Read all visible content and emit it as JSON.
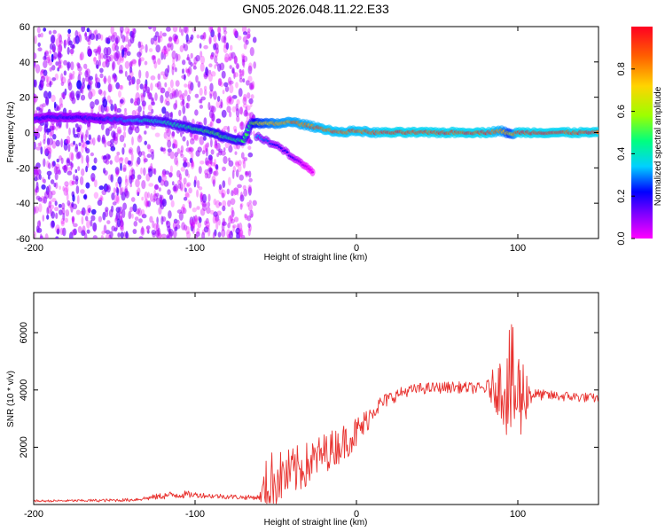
{
  "figure": {
    "title": "GN05.2026.048.11.22.E33"
  },
  "colors": {
    "signal": "#e8322f",
    "rainbow": [
      "#ff00ff",
      "#7a00ff",
      "#0000ff",
      "#00d0ff",
      "#00ff7f",
      "#9cff00",
      "#ffd400",
      "#ff6000",
      "#ff0022"
    ]
  },
  "chart_data": [
    {
      "type": "heatmap",
      "title": "GN05.2026.048.11.22.E33",
      "xlabel": "Height of straight line (km)",
      "ylabel": "Frequency (Hz)",
      "xlim": [
        -200,
        150
      ],
      "ylim": [
        -60,
        60
      ],
      "x_ticks": [
        -200,
        -100,
        0,
        100
      ],
      "y_ticks": [
        -60,
        -40,
        -20,
        0,
        20,
        40,
        60
      ],
      "noise_region_x": [
        -200,
        -63
      ],
      "signal_track": {
        "x": [
          -200,
          -180,
          -160,
          -140,
          -130,
          -120,
          -110,
          -100,
          -90,
          -80,
          -70,
          -65,
          -60,
          -50,
          -40,
          -30,
          -20,
          -10,
          0,
          10,
          20,
          40,
          60,
          80,
          90,
          95,
          100,
          120,
          150
        ],
        "y": [
          8,
          9,
          8,
          7,
          7,
          6,
          4,
          2,
          0,
          -3,
          -5,
          6,
          5,
          5,
          6,
          4,
          2,
          0,
          1,
          0,
          0,
          0,
          0,
          0,
          1,
          -1,
          0,
          0,
          0
        ],
        "amplitude": [
          0.25,
          0.25,
          0.25,
          0.35,
          0.45,
          0.45,
          0.45,
          0.5,
          0.55,
          0.5,
          0.5,
          0.55,
          0.7,
          0.85,
          0.9,
          0.9,
          0.95,
          0.95,
          0.95,
          0.95,
          1.0,
          1.0,
          1.0,
          1.0,
          0.9,
          0.7,
          1.0,
          1.0,
          1.0
        ]
      },
      "secondary_track": {
        "x": [
          -62,
          -55,
          -50,
          -45,
          -40,
          -35,
          -30,
          -27
        ],
        "y": [
          -2,
          -5,
          -7,
          -10,
          -14,
          -17,
          -20,
          -23
        ],
        "amplitude": [
          0.35,
          0.3,
          0.25,
          0.22,
          0.2,
          0.12,
          0.05,
          0.03
        ]
      },
      "colorbar": {
        "label": "Normalized spectral amplitude",
        "range": [
          0,
          1
        ],
        "ticks": [
          "0.0",
          "0.2",
          "0.4",
          "0.6",
          "0.8"
        ]
      }
    },
    {
      "type": "line",
      "xlabel": "Height of straight line (km)",
      "ylabel": "SNR (10 * v/v)",
      "xlim": [
        -200,
        150
      ],
      "ylim": [
        0,
        7400
      ],
      "x_ticks": [
        -200,
        -100,
        0,
        100
      ],
      "y_ticks": [
        2000,
        4000,
        6000
      ],
      "series": [
        {
          "name": "SNR",
          "x": [
            -200,
            -180,
            -160,
            -140,
            -130,
            -120,
            -110,
            -100,
            -90,
            -80,
            -70,
            -60,
            -55,
            -50,
            -45,
            -40,
            -30,
            -20,
            -10,
            0,
            5,
            10,
            20,
            30,
            40,
            60,
            80,
            90,
            95,
            100,
            105,
            110,
            120,
            140,
            150
          ],
          "y": [
            120,
            130,
            140,
            160,
            220,
            300,
            350,
            340,
            300,
            280,
            250,
            250,
            700,
            900,
            1000,
            1100,
            1400,
            1800,
            2100,
            2500,
            2800,
            3300,
            3700,
            3950,
            4050,
            4100,
            4050,
            4100,
            4200,
            3700,
            3900,
            3850,
            3800,
            3750,
            3700
          ],
          "noise": [
            40,
            40,
            50,
            60,
            80,
            120,
            150,
            100,
            90,
            90,
            80,
            90,
            1200,
            1000,
            900,
            900,
            800,
            700,
            650,
            600,
            500,
            350,
            250,
            200,
            200,
            200,
            200,
            1200,
            2200,
            2200,
            1000,
            200,
            180,
            180,
            150
          ]
        }
      ]
    }
  ]
}
